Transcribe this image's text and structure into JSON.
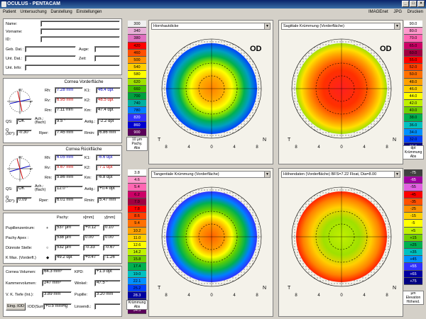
{
  "window": {
    "title": "OCULUS - PENTACAM"
  },
  "menu": {
    "items": [
      "Patient",
      "Untersuchung",
      "Darstellung",
      "Einstellungen"
    ],
    "right_items": [
      "IMAGEnet",
      "JPG",
      "Drucken"
    ]
  },
  "patient": {
    "name_label": "Name:",
    "vorname_label": "Vorname:",
    "id_label": "ID:",
    "geb_label": "Geb. Dat.:",
    "auge_label": "Auge:",
    "unt_label": "Unt. Dat.:",
    "zeit_label": "Zeit:",
    "info_label": "Unt. Info:"
  },
  "front": {
    "title": "Cornea Vorderfläche",
    "rh_label": "Rh:",
    "rh": "7.28 mm",
    "rv_label": "Rv:",
    "rv": "6.95 mm",
    "rm_label": "Rm:",
    "rm": "7.11 mm",
    "k1_label": "K1:",
    "k1": "46.4 dpt",
    "k2_label": "K2:",
    "k2": "48.5 dpt",
    "km_label": "Km:",
    "km": "47.4 dpt",
    "qs_label": "QS:",
    "qs": "OK",
    "ach_label": "Ach.: (flach)",
    "ach": "9.5 °",
    "astig_label": "Astig.:",
    "astig": "-2.2 dpt",
    "q_label": "Q (30°):",
    "q": "-0.30",
    "rper_label": "Rper:",
    "rper": "7.45 mm",
    "rmin_label": "Rmin:",
    "rmin": "6.86 mm"
  },
  "back": {
    "title": "Cornea Rückfläche",
    "rh_label": "Rh:",
    "rh": "6.05 mm",
    "rv_label": "Rv:",
    "rv": "5.67 mm",
    "rm_label": "Rm:",
    "rm": "5.86 mm",
    "k1_label": "K1:",
    "k1": "-6.6 dpt",
    "k2_label": "K2:",
    "k2": "-7.1 dpt",
    "km_label": "Km:",
    "km": "-6.8 dpt",
    "qs_label": "QS:",
    "qs": "OK",
    "ach_label": "Ach.: (flach)",
    "ach": "12.0 °",
    "astig_label": "Astig.:",
    "astig": "+0.4 dpt",
    "q_label": "Q (30°):",
    "q": "0.09",
    "rper_label": "Rper:",
    "rper": "6.01 mm",
    "rmin_label": "Rmin:",
    "rmin": "5.47 mm"
  },
  "pachy": {
    "col_pachy": "Pachy:",
    "col_x": "x[mm]",
    "col_y": "y[mm]",
    "rows": [
      {
        "label": "Pupillenzentrum:",
        "mark": "+",
        "pachy": "537 µm",
        "x": "+0.12",
        "y": "0.10"
      },
      {
        "label": "Pachy Apex :",
        "mark": "",
        "pachy": "538 µm",
        "x": "0.00",
        "y": "0.00"
      },
      {
        "label": "Dünnste Stelle:",
        "mark": "○",
        "pachy": "532 µm",
        "x": "-0.33",
        "y": "-0.67"
      },
      {
        "label": "K Max. (Vorderfl.)",
        "mark": "◆",
        "pachy": "49.2 dpt",
        "x": "+0.47",
        "y": "-1.26"
      }
    ]
  },
  "volumes": {
    "cvol_label": "Cornea Volumen:",
    "cvol": "64.3 mm³",
    "kpd_label": "KPD:",
    "kpd": "+1.3 dpt",
    "kvol_label": "Kammervolumen:",
    "kvol": "247 mm³",
    "winkel_label": "Winkel:",
    "winkel": "47.5 °",
    "vk_label": "V. K. Tiefe (Int.):",
    "vk": "3.89 mm",
    "pupille_label": "Pupille:",
    "pupille": "3.20 mm",
    "iod_btn": "Eing. IOD",
    "iodsum_label": "IOD(Sum):",
    "iodsum": "+0.5 mmHg",
    "linsen_label": "Linsendi.:"
  },
  "maps": {
    "tl": {
      "title": "Hornhautdicke",
      "eye": "OD"
    },
    "tr": {
      "title": "Sagittale Krümmung (Vorderfläche)",
      "eye": "OD"
    },
    "bl": {
      "title": "Tangentiale Krümmung (Vorderfläche)"
    },
    "br": {
      "title": "Höhendaten (Vorderfläche)  BFS=7.22 Float, Dia=8.00"
    },
    "tick_labels": [
      "8",
      "4",
      "0",
      "4",
      "8"
    ],
    "t_label": "T",
    "n_label": "N"
  },
  "scales": {
    "pachy": {
      "values": [
        "300",
        "340",
        "380",
        "420",
        "460",
        "500",
        "540",
        "580",
        "620",
        "660",
        "700",
        "740",
        "780",
        "820",
        "860",
        "900"
      ],
      "foot1": "10 µm",
      "foot2": "Pachy.",
      "foot3": "Abs"
    },
    "kruemmung_top": {
      "values": [
        "90.0",
        "80.0",
        "70.0",
        "65.0",
        "60.0",
        "55.0",
        "52.0",
        "50.0",
        "48.0",
        "46.0",
        "44.0",
        "42.0",
        "40.0",
        "38.0",
        "36.0",
        "34.0",
        "32.0",
        "30.0"
      ],
      "foot1": "dpt",
      "foot2": "Krümmung",
      "foot3": "Abs"
    },
    "kruemmung_bot": {
      "values": [
        "3.8",
        "4.6",
        "5.4",
        "6.2",
        "7.0",
        "7.8",
        "8.6",
        "9.4",
        "10.2",
        "11.0",
        "12.6",
        "14.2",
        "15.8",
        "17.4",
        "19.0",
        "22.1",
        "25.2",
        "28.3",
        "31.4",
        "34.5"
      ],
      "foot1": "Krümmung",
      "foot2": "Abs"
    },
    "elevation": {
      "values": [
        "-75",
        "-65",
        "-55",
        "-45",
        "-35",
        "-25",
        "-15",
        "-5",
        "+5",
        "+15",
        "+25",
        "+35",
        "+45",
        "+55",
        "+65",
        "+75"
      ],
      "foot1": "µm",
      "foot2": "Elevation",
      "foot3": "Höhend."
    }
  }
}
